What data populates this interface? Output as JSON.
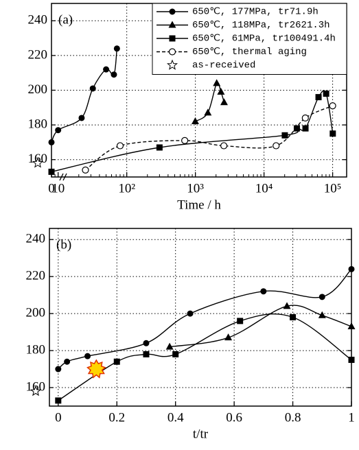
{
  "chart_data": [
    {
      "type": "scatter",
      "panel_label": "(a)",
      "x_label": "Time / h",
      "xscale": "log",
      "axis_break": true,
      "grid": true,
      "legend": "upper right",
      "xlim": [
        8,
        160000
      ],
      "ylim": [
        150,
        250
      ],
      "xticks": [
        0,
        10,
        {
          "value": 100,
          "label": "10²"
        },
        {
          "value": 1000,
          "label": "10³"
        },
        {
          "value": 10000,
          "label": "10⁴"
        },
        {
          "value": 100000,
          "label": "10⁵"
        }
      ],
      "yticks": [
        160,
        180,
        200,
        220,
        240
      ],
      "series": [
        {
          "name": "650℃, 177MPa, tr71.9h",
          "color": "#000000",
          "marker": "circle",
          "line": "solid",
          "x": [
            0,
            10,
            22,
            32,
            50,
            65,
            71.9
          ],
          "values": [
            170,
            177,
            184,
            201,
            212,
            209,
            224
          ]
        },
        {
          "name": "650℃, 118MPa, tr2621.3h",
          "color": "#000000",
          "marker": "triangle",
          "line": "solid",
          "x": [
            996,
            1520,
            2045,
            2359,
            2621.3
          ],
          "values": [
            182,
            187,
            204,
            199,
            193
          ]
        },
        {
          "name": "650℃,  61MPa, tr100491.4h",
          "color": "#000000",
          "marker": "square",
          "line": "solid",
          "x": [
            0,
            300,
            20100,
            30100,
            40200,
            62300,
            80400,
            100491.4
          ],
          "values": [
            153,
            167,
            174,
            178,
            178,
            196,
            198,
            175
          ]
        },
        {
          "name": "650℃, thermal aging",
          "color": "#000000",
          "marker": "open-circle",
          "line": "dashed",
          "x": [
            25,
            80,
            700,
            2600,
            15000,
            40000,
            100000
          ],
          "values": [
            154,
            168,
            171,
            168,
            168,
            184,
            191
          ]
        },
        {
          "name": "as-received",
          "color": "#000000",
          "marker": "star",
          "values": [
            158
          ]
        }
      ]
    },
    {
      "type": "scatter",
      "panel_label": "(b)",
      "x_label": "t/tr",
      "grid": true,
      "xlim": [
        -0.03,
        1.0
      ],
      "ylim": [
        150,
        246
      ],
      "xticks": [
        0,
        0.2,
        0.4,
        0.6,
        0.8,
        1
      ],
      "yticks": [
        160,
        180,
        200,
        220,
        240
      ],
      "series": [
        {
          "color": "#000000",
          "marker": "circle",
          "line": "solid",
          "x": [
            0,
            0.03,
            0.1,
            0.3,
            0.45,
            0.7,
            0.9,
            1
          ],
          "values": [
            170,
            174,
            177,
            184,
            200,
            212,
            209,
            224
          ]
        },
        {
          "color": "#000000",
          "marker": "triangle",
          "line": "solid",
          "x": [
            0.38,
            0.58,
            0.78,
            0.9,
            1
          ],
          "values": [
            182,
            187,
            204,
            199,
            193
          ]
        },
        {
          "color": "#000000",
          "marker": "square",
          "line": "solid",
          "x": [
            0,
            0.2,
            0.3,
            0.4,
            0.62,
            0.8,
            1
          ],
          "values": [
            153,
            174,
            178,
            178,
            196,
            198,
            175
          ]
        },
        {
          "color": "#000000",
          "marker": "star",
          "values": [
            158
          ]
        },
        {
          "color": "#ffd400",
          "marker": "burst",
          "x": [
            0.13
          ],
          "values": [
            170
          ]
        }
      ]
    }
  ]
}
